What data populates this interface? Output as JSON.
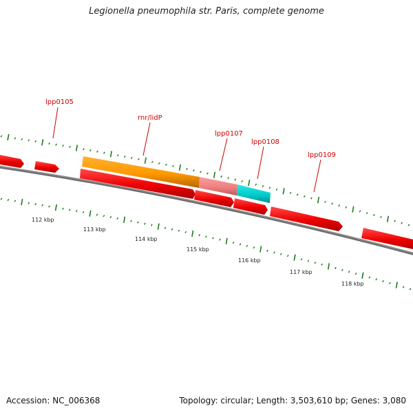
{
  "title": "Legionella pneumophila str. Paris, complete genome",
  "footer": {
    "accession": "Accession: NC_006368",
    "stats": "Topology: circular; Length: 3,503,610 bp; Genes: 3,080"
  },
  "colors": {
    "backbone": "#777777",
    "gene": "#ee0000",
    "gene_orange": "#ff9900",
    "gene_pink": "#f08080",
    "gene_cyan": "#00cccc",
    "ticks": "#1a7a1a",
    "label": "#cc0000"
  },
  "gene_labels": [
    "lpp0105",
    "rnr/lidP",
    "lpp0107",
    "lpp0108",
    "lpp0109"
  ],
  "scale_labels": [
    "112 kbp",
    "113 kbp",
    "114 kbp",
    "115 kbp",
    "116 kbp",
    "117 kbp",
    "118 kbp"
  ]
}
